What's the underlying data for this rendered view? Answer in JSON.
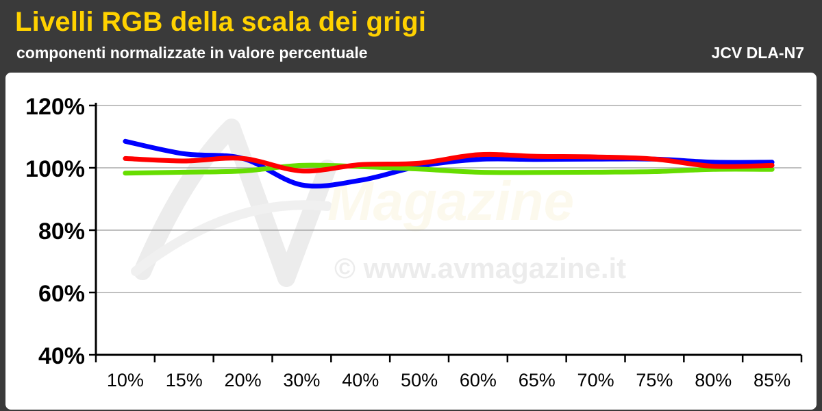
{
  "header": {
    "title": "Livelli RGB della scala dei grigi",
    "subtitle": "componenti normalizzate in valore percentuale",
    "model": "JCV DLA-N7"
  },
  "watermark": {
    "url": "© www.avmagazine.it",
    "logo_text": "Magazine"
  },
  "chart_data": {
    "type": "line",
    "categories": [
      "10%",
      "15%",
      "20%",
      "30%",
      "40%",
      "50%",
      "60%",
      "65%",
      "70%",
      "75%",
      "80%",
      "85%"
    ],
    "y_ticks": [
      "40%",
      "60%",
      "80%",
      "100%",
      "120%"
    ],
    "ylim": [
      40,
      120
    ],
    "grid": true,
    "series": [
      {
        "color": "#0000ff",
        "values": [
          108.5,
          104.5,
          103,
          94.5,
          96,
          100.5,
          102.7,
          102.7,
          102.8,
          102.8,
          101.8,
          101.8
        ]
      },
      {
        "color": "#66dd00",
        "values": [
          98.3,
          98.6,
          99,
          100.8,
          100.4,
          99.6,
          98.6,
          98.5,
          98.6,
          98.8,
          99.5,
          99.5
        ]
      },
      {
        "color": "#ff0000",
        "values": [
          103,
          102.2,
          103,
          99,
          101,
          101.5,
          104.2,
          103.7,
          103.5,
          102.8,
          100.5,
          100.8
        ]
      }
    ]
  }
}
